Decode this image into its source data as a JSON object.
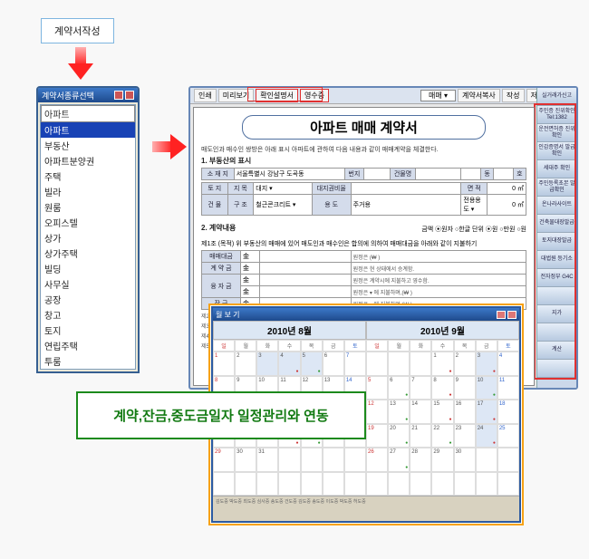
{
  "top_button": "계약서작성",
  "list_window": {
    "title": "계약서종류선택",
    "search": "아파트",
    "items": [
      "아파트",
      "부동산",
      "아파트분양권",
      "주택",
      "빌라",
      "원룸",
      "오피스텔",
      "상가",
      "상가주택",
      "빌딩",
      "사무실",
      "공장",
      "창고",
      "토지",
      "연립주택",
      "투룸"
    ],
    "selected_index": 0
  },
  "main": {
    "toolbar": {
      "print": "인쇄",
      "preview": "미리보기",
      "confirm": "확인설명서",
      "receipt": "영수증",
      "type": "매매 ▾",
      "copy": "계약서복사",
      "sign": "작성",
      "save": "저장",
      "close": "닫기"
    },
    "doc": {
      "title": "아파트 매매 계약서",
      "intro": "매도인과 매수인 쌍방은 아래 표시 아파트에 관하여 다음 내용과 같이 매매계약을 체결한다.",
      "sec1": "1. 부동산의 표시",
      "addr_label": "소 재 지",
      "addr": "서울특별시 강남구 도곡동",
      "bunji": "번지",
      "bldg": "건물명",
      "dong": "동",
      "ho": "호",
      "land_label": "토 지",
      "jimok": "지 목",
      "jimok_v": "대지 ▾",
      "daeji": "대지권비율",
      "area1": "면 적",
      "area1_v": "0 ㎡",
      "str_label": "건 물",
      "gujo": "구 조",
      "gujo_v": "철근콘크리트 ▾",
      "use": "용 도",
      "use_v": "주거용",
      "use2": "전용용도 ▾",
      "area2": "0 ㎡",
      "sec2": "2. 계약내용",
      "pay_note": "금액 ⦿원자 ○한글    단위 ⦿원 ○만원 ○원",
      "art1": "제1조 (목적) 위 부동산의 매매에 있어 매도인과 매수인은 합의에 의하여 매매대금을 아래와 같이 지불하기",
      "p_total": "매매대금",
      "p_total_v": "金",
      "p_total_m": "원정은 (₩                    )",
      "p_down": "계 약 금",
      "p_down_v": "金",
      "p_down_m": "원정은 현 상태에서 승계함.",
      "p_mid": "융 자 금",
      "p_mid_v": "金",
      "p_mid_m": "원정은 계약시에 지불하고 영수함.",
      "p_mid2": "金",
      "p_mid2_m": "원정은               ▾ 에 지불하며,(₩           )",
      "p_bal": "잔    금",
      "p_bal_v": "金",
      "p_bal_m": "원정은               ▾ 에 지불하며,(₩           )",
      "art2": "제2조 (소",
      "art3": "제3조 (제",
      "art4": "제4조",
      "art5": "제5조"
    },
    "right": [
      "실거래가신고",
      "주민증 진위확인\nTel:1382",
      "운전면허증 진위확인",
      "인감증명서 발급확인",
      "세대주 확인",
      "주민등록초본 발급확인",
      "온나라사이트",
      "건축물대장발급",
      "토지대장발급",
      "대법원 등기소",
      "전자정부 G4C",
      "",
      "지가",
      "",
      "계산",
      ""
    ]
  },
  "callout": "계약,잔금,중도금일자 일정관리와 연동",
  "calendar": {
    "title": "월 보 기",
    "month1": "2010년 8월",
    "month2": "2010년 9월",
    "dow": [
      "일",
      "월",
      "화",
      "수",
      "목",
      "금",
      "토"
    ],
    "m1_start": 0,
    "m1_days": 31,
    "m2_start": 3,
    "m2_days": 30,
    "pink1": [
      3,
      4,
      5
    ],
    "blue1": [
      3,
      4,
      5,
      18,
      19
    ],
    "events1": {
      "4": "ev",
      "11": "ev",
      "18": "ev",
      "25": "ev",
      "5": "ev2",
      "26": "ev2"
    },
    "events2": {
      "1": "ev",
      "3": "ev",
      "6": "ev2",
      "8": "ev",
      "10": "ev2",
      "13": "ev2",
      "15": "ev",
      "17": "ev",
      "20": "ev2",
      "22": "ev2",
      "24": "ev",
      "27": "ev2"
    },
    "blue2": [
      3,
      10,
      17,
      24
    ],
    "footer": "김도중  박도중  최도중   심사중  송도중  건도중   김도중  송도중  이도중  박도중   허도중"
  }
}
